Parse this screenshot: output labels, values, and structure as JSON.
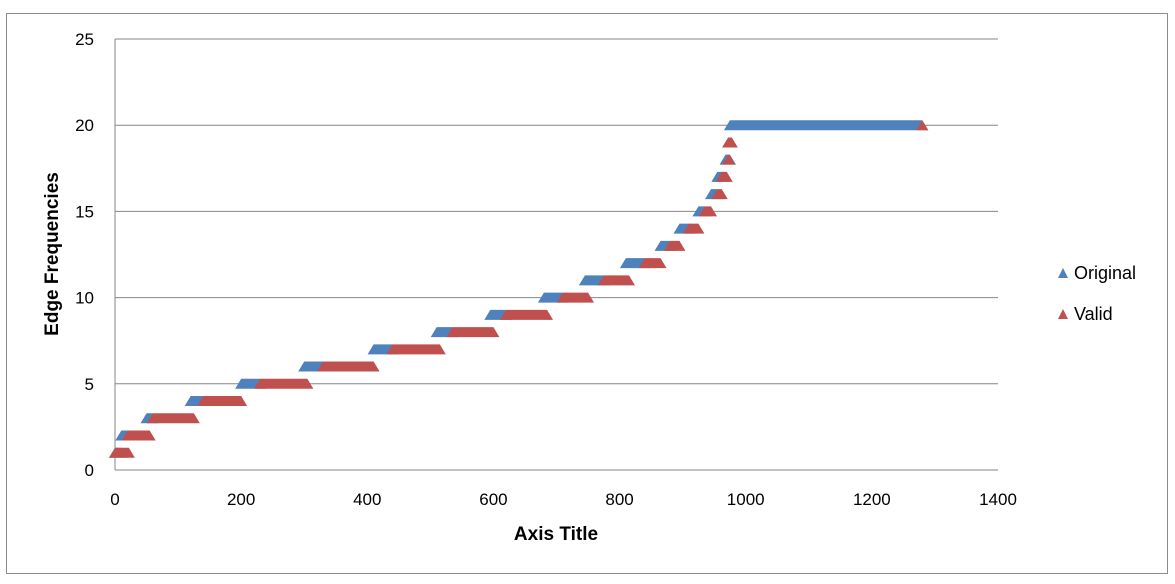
{
  "chart_data": {
    "type": "scatter",
    "title": "",
    "xlabel": "Axis Title",
    "ylabel": "Edge Frequencies",
    "xlim": [
      0,
      1400
    ],
    "ylim": [
      0,
      25
    ],
    "xticks": [
      "0",
      "200",
      "400",
      "600",
      "800",
      "1000",
      "1200",
      "1400"
    ],
    "yticks": [
      "0",
      "5",
      "10",
      "15",
      "20",
      "25"
    ],
    "grid": "horizontal",
    "legend_position": "right",
    "marker": "triangle",
    "series": [
      {
        "name": "Original",
        "color": "#4F81BD",
        "segments": [
          {
            "y": 1,
            "x": [
              0,
              10
            ]
          },
          {
            "y": 2,
            "x": [
              10,
              25
            ]
          },
          {
            "y": 3,
            "x": [
              50,
              60
            ]
          },
          {
            "y": 4,
            "x": [
              120,
              140
            ]
          },
          {
            "y": 5,
            "x": [
              200,
              230
            ]
          },
          {
            "y": 6,
            "x": [
              300,
              330
            ]
          },
          {
            "y": 7,
            "x": [
              410,
              440
            ]
          },
          {
            "y": 8,
            "x": [
              510,
              535
            ]
          },
          {
            "y": 9,
            "x": [
              595,
              620
            ]
          },
          {
            "y": 10,
            "x": [
              680,
              710
            ]
          },
          {
            "y": 11,
            "x": [
              745,
              775
            ]
          },
          {
            "y": 12,
            "x": [
              810,
              840
            ]
          },
          {
            "y": 13,
            "x": [
              865,
              880
            ]
          },
          {
            "y": 14,
            "x": [
              895,
              910
            ]
          },
          {
            "y": 15,
            "x": [
              925,
              935
            ]
          },
          {
            "y": 16,
            "x": [
              945,
              955
            ]
          },
          {
            "y": 17,
            "x": [
              955,
              965
            ]
          },
          {
            "y": 18,
            "x": [
              968,
              975
            ]
          },
          {
            "y": 20,
            "x": [
              975,
              1280
            ]
          }
        ]
      },
      {
        "name": "Valid",
        "color": "#C0504D",
        "segments": [
          {
            "y": 1,
            "x": [
              0,
              22
            ]
          },
          {
            "y": 2,
            "x": [
              20,
              55
            ]
          },
          {
            "y": 3,
            "x": [
              60,
              125
            ]
          },
          {
            "y": 4,
            "x": [
              140,
              200
            ]
          },
          {
            "y": 5,
            "x": [
              230,
              305
            ]
          },
          {
            "y": 6,
            "x": [
              330,
              410
            ]
          },
          {
            "y": 7,
            "x": [
              440,
              515
            ]
          },
          {
            "y": 8,
            "x": [
              535,
              600
            ]
          },
          {
            "y": 9,
            "x": [
              620,
              685
            ]
          },
          {
            "y": 10,
            "x": [
              710,
              750
            ]
          },
          {
            "y": 11,
            "x": [
              775,
              815
            ]
          },
          {
            "y": 12,
            "x": [
              840,
              865
            ]
          },
          {
            "y": 13,
            "x": [
              880,
              895
            ]
          },
          {
            "y": 14,
            "x": [
              910,
              925
            ]
          },
          {
            "y": 15,
            "x": [
              935,
              945
            ]
          },
          {
            "y": 16,
            "x": [
              955,
              962
            ]
          },
          {
            "y": 17,
            "x": [
              962,
              970
            ]
          },
          {
            "y": 18,
            "x": [
              972,
              974
            ]
          },
          {
            "y": 19,
            "x": [
              972,
              978
            ]
          },
          {
            "y": 20,
            "x": [
              1280,
              1280
            ]
          }
        ]
      }
    ]
  }
}
